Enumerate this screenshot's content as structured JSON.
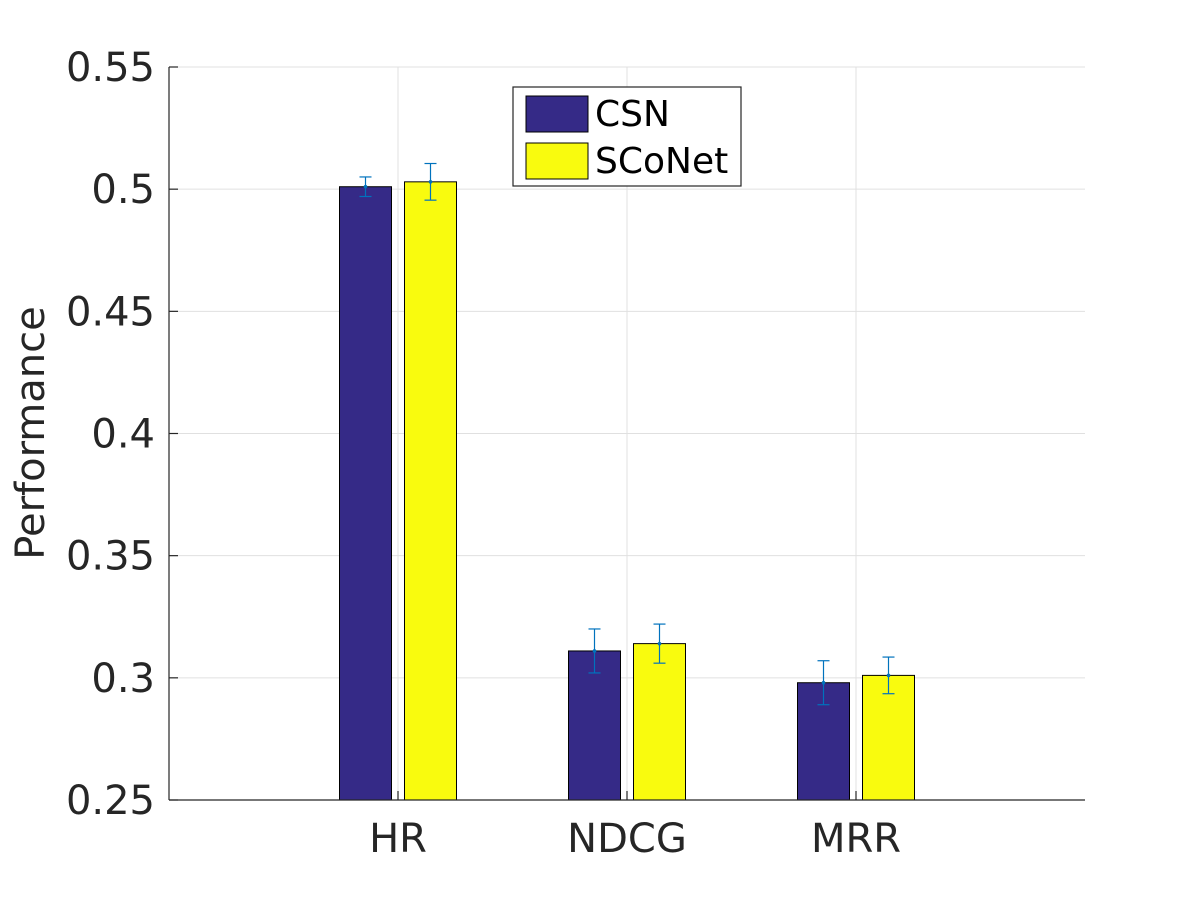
{
  "chart_data": {
    "type": "bar",
    "title": "",
    "xlabel": "",
    "ylabel": "Performance",
    "ylim": [
      0.25,
      0.55
    ],
    "yticks": [
      "0.25",
      "0.3",
      "0.35",
      "0.4",
      "0.45",
      "0.5",
      "0.55"
    ],
    "ytick_values": [
      0.25,
      0.3,
      0.35,
      0.4,
      0.45,
      0.5,
      0.55
    ],
    "categories": [
      "HR",
      "NDCG",
      "MRR"
    ],
    "grid": true,
    "legend_position": "top-center",
    "series": [
      {
        "name": "CSN",
        "color": "#352a87",
        "values": [
          0.501,
          0.311,
          0.298
        ],
        "errors": [
          0.004,
          0.009,
          0.009
        ]
      },
      {
        "name": "SCoNet",
        "color": "#f9fb0e",
        "values": [
          0.503,
          0.314,
          0.301
        ],
        "errors": [
          0.0075,
          0.008,
          0.0075
        ]
      }
    ],
    "error_bar_color": "#0072bd"
  }
}
